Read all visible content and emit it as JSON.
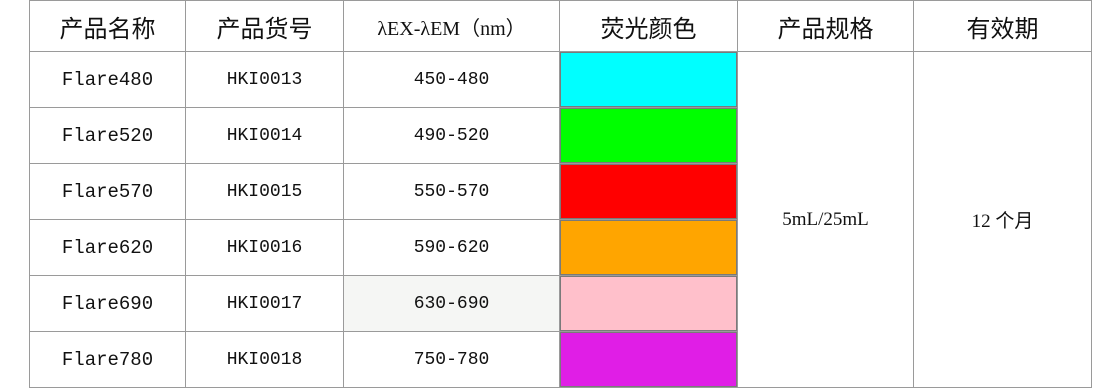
{
  "headers": {
    "name": "产品名称",
    "code": "产品货号",
    "wavelength": "λEX-λEM（nm）",
    "color": "荧光颜色",
    "spec": "产品规格",
    "validity": "有效期"
  },
  "rows": [
    {
      "name": "Flare480",
      "code": "HKI0013",
      "range": "450-480",
      "color": "#00ffff"
    },
    {
      "name": "Flare520",
      "code": "HKI0014",
      "range": "490-520",
      "color": "#00ff00"
    },
    {
      "name": "Flare570",
      "code": "HKI0015",
      "range": "550-570",
      "color": "#ff0000"
    },
    {
      "name": "Flare620",
      "code": "HKI0016",
      "range": "590-620",
      "color": "#ffa500"
    },
    {
      "name": "Flare690",
      "code": "HKI0017",
      "range": "630-690",
      "color": "#ffc0cb"
    },
    {
      "name": "Flare780",
      "code": "HKI0018",
      "range": "750-780",
      "color": "#e01ee6"
    }
  ],
  "spec": "5mL/25mL",
  "validity": "12 个月"
}
